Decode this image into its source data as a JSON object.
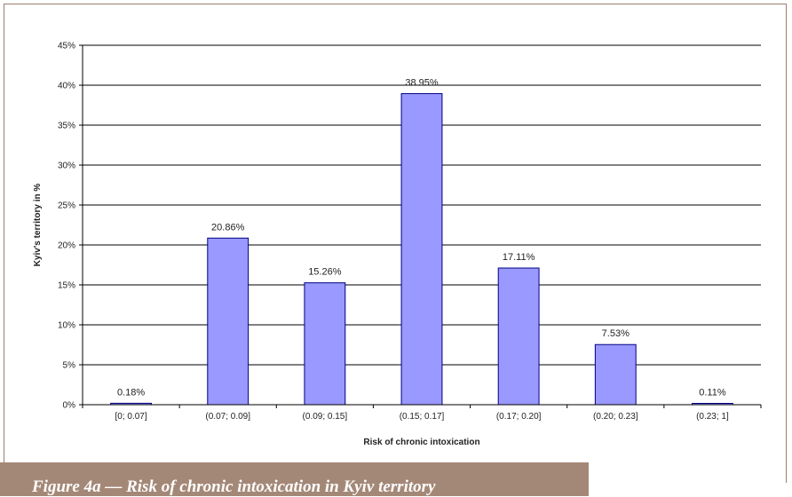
{
  "chart_data": {
    "type": "bar",
    "categories": [
      "[0; 0.07]",
      "(0.07; 0.09]",
      "(0.09; 0.15]",
      "(0.15; 0.17]",
      "(0.17; 0.20]",
      "(0.20; 0.23]",
      "(0.23; 1]"
    ],
    "values": [
      0.18,
      20.86,
      15.26,
      38.95,
      17.11,
      7.53,
      0.11
    ],
    "data_labels": [
      "0.18%",
      "20.86%",
      "15.26%",
      "38.95%",
      "17.11%",
      "7.53%",
      "0.11%"
    ],
    "xlabel": "Risk of chronic intoxication",
    "ylabel": "Kyiv's territory in %",
    "ylim": [
      0,
      45
    ],
    "yticks": [
      0,
      5,
      10,
      15,
      20,
      25,
      30,
      35,
      40,
      45
    ],
    "ytick_labels": [
      "0%",
      "5%",
      "10%",
      "15%",
      "20%",
      "25%",
      "30%",
      "35%",
      "40%",
      "45%"
    ],
    "grid": true,
    "bar_color": "#9999ff",
    "bar_edge_color": "#000080"
  },
  "caption": {
    "text": "Figure 4a — Risk of chronic intoxication in Kyiv territory",
    "background": "#a48877"
  }
}
